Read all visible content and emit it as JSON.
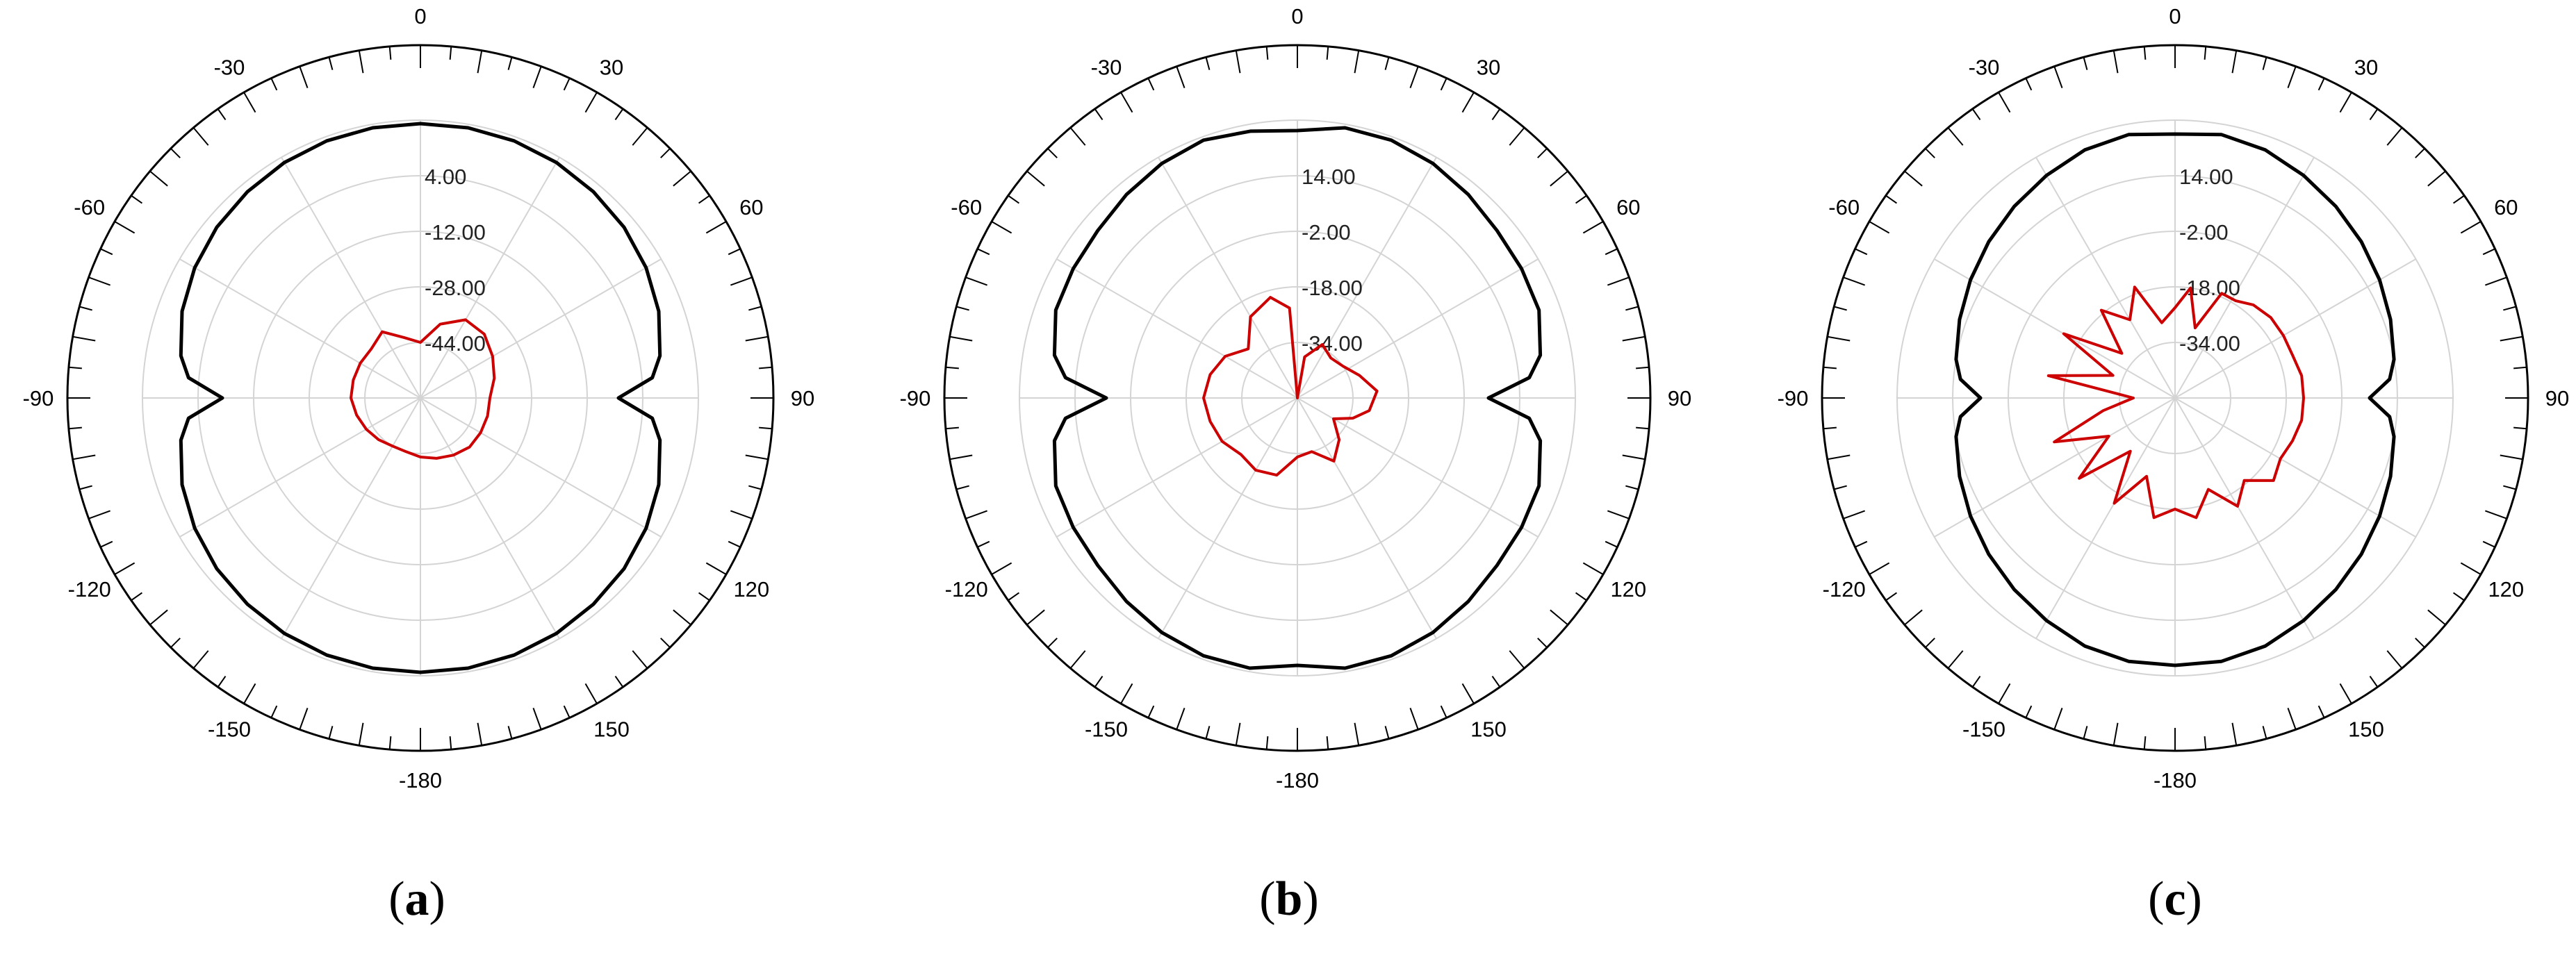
{
  "chart_data": [
    {
      "type": "polar",
      "panel_label": "a",
      "angle_ticks": [
        "0",
        "30",
        "60",
        "90",
        "120",
        "150",
        "-180",
        "-150",
        "-120",
        "-90",
        "-60",
        "-30"
      ],
      "radial_tick_labels": [
        "4.00",
        "-12.00",
        "-28.00",
        "-44.00"
      ],
      "radial_range": [
        -60,
        20
      ],
      "grid": true,
      "series": [
        {
          "color": "#000000",
          "points": [
            [
              0,
              19
            ],
            [
              10,
              19
            ],
            [
              20,
              18.8
            ],
            [
              30,
              18.3
            ],
            [
              40,
              17.5
            ],
            [
              50,
              16.5
            ],
            [
              60,
              15
            ],
            [
              70,
              13
            ],
            [
              80,
              10
            ],
            [
              85,
              7
            ],
            [
              90,
              -3
            ],
            [
              95,
              7
            ],
            [
              100,
              10
            ],
            [
              110,
              13
            ],
            [
              120,
              15
            ],
            [
              130,
              16.5
            ],
            [
              140,
              17.5
            ],
            [
              150,
              18.3
            ],
            [
              160,
              18.8
            ],
            [
              170,
              19
            ],
            [
              180,
              19
            ],
            [
              190,
              19
            ],
            [
              200,
              18.8
            ],
            [
              210,
              18.3
            ],
            [
              220,
              17.5
            ],
            [
              230,
              16.5
            ],
            [
              240,
              15
            ],
            [
              250,
              13
            ],
            [
              260,
              10
            ],
            [
              265,
              7
            ],
            [
              270,
              -3
            ],
            [
              275,
              7
            ],
            [
              280,
              10
            ],
            [
              290,
              13
            ],
            [
              300,
              15
            ],
            [
              310,
              16.5
            ],
            [
              320,
              17.5
            ],
            [
              330,
              18.3
            ],
            [
              340,
              18.8
            ],
            [
              350,
              19
            ]
          ]
        },
        {
          "color": "#cc0000",
          "points": [
            [
              0,
              -44
            ],
            [
              15,
              -38
            ],
            [
              30,
              -34
            ],
            [
              45,
              -34
            ],
            [
              60,
              -36
            ],
            [
              75,
              -38
            ],
            [
              90,
              -40
            ],
            [
              105,
              -40
            ],
            [
              120,
              -40
            ],
            [
              135,
              -40
            ],
            [
              150,
              -41
            ],
            [
              165,
              -42
            ],
            [
              180,
              -43
            ],
            [
              195,
              -44
            ],
            [
              210,
              -44
            ],
            [
              225,
              -43
            ],
            [
              240,
              -42
            ],
            [
              255,
              -41
            ],
            [
              270,
              -40
            ],
            [
              285,
              -40
            ],
            [
              300,
              -40
            ],
            [
              315,
              -40
            ],
            [
              330,
              -38
            ],
            [
              345,
              -42
            ]
          ]
        }
      ]
    },
    {
      "type": "polar",
      "panel_label": "b",
      "angle_ticks": [
        "0",
        "30",
        "60",
        "90",
        "120",
        "150",
        "-180",
        "-150",
        "-120",
        "-90",
        "-60",
        "-30"
      ],
      "radial_tick_labels": [
        "14.00",
        "-2.00",
        "-18.00",
        "-34.00"
      ],
      "radial_range": [
        -50,
        30
      ],
      "grid": true,
      "series": [
        {
          "color": "#000000",
          "points": [
            [
              0,
              27
            ],
            [
              10,
              29
            ],
            [
              20,
              29
            ],
            [
              30,
              28
            ],
            [
              40,
              26.5
            ],
            [
              50,
              25
            ],
            [
              60,
              24.5
            ],
            [
              70,
              24
            ],
            [
              80,
              21
            ],
            [
              85,
              17
            ],
            [
              90,
              5
            ],
            [
              95,
              17
            ],
            [
              100,
              21
            ],
            [
              110,
              24
            ],
            [
              120,
              24.5
            ],
            [
              130,
              25
            ],
            [
              140,
              26.5
            ],
            [
              150,
              28
            ],
            [
              160,
              29
            ],
            [
              170,
              29
            ],
            [
              180,
              27
            ],
            [
              190,
              29
            ],
            [
              200,
              29
            ],
            [
              210,
              28
            ],
            [
              220,
              26.5
            ],
            [
              230,
              25
            ],
            [
              240,
              24.5
            ],
            [
              250,
              24
            ],
            [
              260,
              21
            ],
            [
              265,
              17
            ],
            [
              270,
              5
            ],
            [
              275,
              17
            ],
            [
              280,
              21
            ],
            [
              290,
              24
            ],
            [
              300,
              24.5
            ],
            [
              310,
              25
            ],
            [
              320,
              26.5
            ],
            [
              330,
              28
            ],
            [
              340,
              29
            ],
            [
              350,
              28
            ]
          ]
        },
        {
          "color": "#cc0000",
          "points": [
            [
              0,
              -50
            ],
            [
              10,
              -38
            ],
            [
              25,
              -33
            ],
            [
              40,
              -35
            ],
            [
              55,
              -34
            ],
            [
              70,
              -31
            ],
            [
              85,
              -27
            ],
            [
              100,
              -29
            ],
            [
              110,
              -33
            ],
            [
              120,
              -38
            ],
            [
              135,
              -33
            ],
            [
              150,
              -29
            ],
            [
              165,
              -34
            ],
            [
              180,
              -33
            ],
            [
              195,
              -27
            ],
            [
              210,
              -26
            ],
            [
              225,
              -27
            ],
            [
              240,
              -25
            ],
            [
              255,
              -24
            ],
            [
              270,
              -23
            ],
            [
              285,
              -24
            ],
            [
              300,
              -26
            ],
            [
              315,
              -30
            ],
            [
              330,
              -23
            ],
            [
              345,
              -20
            ],
            [
              355,
              -24
            ]
          ]
        }
      ]
    },
    {
      "type": "polar",
      "panel_label": "c",
      "angle_ticks": [
        "0",
        "30",
        "60",
        "90",
        "120",
        "150",
        "-180",
        "-150",
        "-120",
        "-90",
        "-60",
        "-30"
      ],
      "radial_tick_labels": [
        "14.00",
        "-2.00",
        "-18.00",
        "-34.00"
      ],
      "radial_range": [
        -50,
        30
      ],
      "grid": true,
      "series": [
        {
          "color": "#000000",
          "points": [
            [
              0,
              26
            ],
            [
              10,
              27
            ],
            [
              20,
              26
            ],
            [
              30,
              24
            ],
            [
              40,
              22
            ],
            [
              50,
              20
            ],
            [
              60,
              18
            ],
            [
              70,
              16
            ],
            [
              80,
              14
            ],
            [
              85,
              12
            ],
            [
              90,
              6
            ],
            [
              95,
              12
            ],
            [
              100,
              14
            ],
            [
              110,
              16
            ],
            [
              120,
              18
            ],
            [
              130,
              20
            ],
            [
              140,
              22
            ],
            [
              150,
              24
            ],
            [
              160,
              26
            ],
            [
              170,
              27
            ],
            [
              180,
              27
            ],
            [
              190,
              27
            ],
            [
              200,
              26
            ],
            [
              210,
              24
            ],
            [
              220,
              22
            ],
            [
              230,
              20
            ],
            [
              240,
              18
            ],
            [
              250,
              16
            ],
            [
              260,
              14
            ],
            [
              265,
              12
            ],
            [
              270,
              6
            ],
            [
              275,
              12
            ],
            [
              280,
              14
            ],
            [
              290,
              16
            ],
            [
              300,
              18
            ],
            [
              310,
              20
            ],
            [
              320,
              22
            ],
            [
              330,
              24
            ],
            [
              340,
              26
            ],
            [
              350,
              27
            ]
          ]
        },
        {
          "color": "#cc0000",
          "points": [
            [
              0,
              -24
            ],
            [
              8,
              -18
            ],
            [
              16,
              -29
            ],
            [
              24,
              -17
            ],
            [
              32,
              -17
            ],
            [
              40,
              -15
            ],
            [
              50,
              -14
            ],
            [
              60,
              -14
            ],
            [
              70,
              -14
            ],
            [
              80,
              -13
            ],
            [
              90,
              -13
            ],
            [
              100,
              -13
            ],
            [
              110,
              -14
            ],
            [
              120,
              -15
            ],
            [
              130,
              -13
            ],
            [
              140,
              -19
            ],
            [
              150,
              -14
            ],
            [
              160,
              -22
            ],
            [
              170,
              -15
            ],
            [
              180,
              -18
            ],
            [
              190,
              -15
            ],
            [
              200,
              -26
            ],
            [
              210,
              -15
            ],
            [
              220,
              -30
            ],
            [
              230,
              -14
            ],
            [
              240,
              -28
            ],
            [
              250,
              -13
            ],
            [
              260,
              -29
            ],
            [
              270,
              -38
            ],
            [
              280,
              -13
            ],
            [
              290,
              -31
            ],
            [
              300,
              -13
            ],
            [
              310,
              -30
            ],
            [
              320,
              -17
            ],
            [
              330,
              -24
            ],
            [
              340,
              -16
            ],
            [
              350,
              -28
            ]
          ]
        }
      ]
    }
  ]
}
